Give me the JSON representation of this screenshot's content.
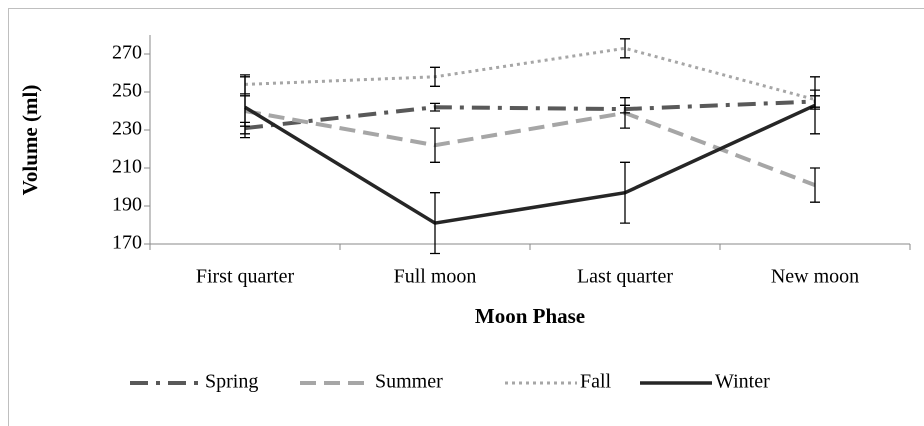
{
  "chart_data": {
    "type": "line",
    "x_label": "Moon Phase",
    "y_label": "Volume (ml)",
    "categories": [
      "First quarter",
      "Full moon",
      "Last quarter",
      "New moon"
    ],
    "ylim": [
      170,
      280
    ],
    "yticks": [
      170,
      190,
      210,
      230,
      250,
      270
    ],
    "legend": "bottom",
    "series": [
      {
        "name": "Spring",
        "color": "#595959",
        "line_style": "dash-dot",
        "values": [
          231,
          242,
          241,
          245
        ],
        "errors": [
          3,
          2,
          2,
          3
        ]
      },
      {
        "name": "Summer",
        "color": "#a6a6a6",
        "line_style": "dashed",
        "values": [
          240,
          222,
          239,
          201
        ],
        "errors": [
          8,
          9,
          8,
          9
        ]
      },
      {
        "name": "Fall",
        "color": "#a6a6a6",
        "line_style": "dotted",
        "values": [
          254,
          258,
          273,
          246
        ],
        "errors": [
          5,
          5,
          5,
          5
        ]
      },
      {
        "name": "Winter",
        "color": "#262626",
        "line_style": "solid",
        "values": [
          242,
          181,
          197,
          243
        ],
        "errors": [
          16,
          16,
          16,
          15
        ]
      }
    ]
  }
}
